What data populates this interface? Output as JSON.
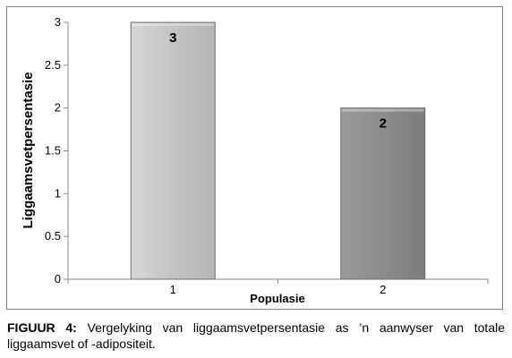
{
  "chart_data": {
    "type": "bar",
    "categories": [
      "1",
      "2"
    ],
    "values": [
      3,
      2
    ],
    "data_labels": [
      "3",
      "2"
    ],
    "xlabel": "Populasie",
    "ylabel": "Liggaamsvetpersentasie",
    "ylim": [
      0,
      3
    ],
    "yticks": [
      "0",
      "0.5",
      "1",
      "1.5",
      "2",
      "2.5",
      "3"
    ],
    "grid": false,
    "legend": "none",
    "bar_colors": [
      "#c2c2c2",
      "#8c8c8c"
    ]
  },
  "caption": {
    "label": "FIGUUR 4:",
    "text": "Vergelyking van liggaamsvetpersentasie as ’n aanwyser van totale liggaamsvet of -adipositeit."
  }
}
